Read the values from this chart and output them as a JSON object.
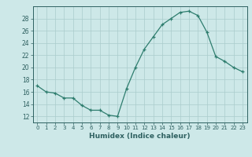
{
  "x": [
    0,
    1,
    2,
    3,
    4,
    5,
    6,
    7,
    8,
    9,
    10,
    11,
    12,
    13,
    14,
    15,
    16,
    17,
    18,
    19,
    20,
    21,
    22,
    23
  ],
  "y": [
    17,
    16,
    15.8,
    15,
    15,
    13.8,
    13,
    13,
    12.2,
    12,
    16.5,
    20,
    23,
    25,
    27,
    28,
    29,
    29.2,
    28.5,
    25.8,
    21.8,
    21,
    20,
    19.3
  ],
  "line_color": "#2e7d6e",
  "marker": "+",
  "bg_color": "#cde8e8",
  "grid_color": "#aacccc",
  "xlabel": "Humidex (Indice chaleur)",
  "xlim": [
    -0.5,
    23.5
  ],
  "ylim": [
    11,
    30
  ],
  "yticks": [
    12,
    14,
    16,
    18,
    20,
    22,
    24,
    26,
    28
  ],
  "xticks": [
    0,
    1,
    2,
    3,
    4,
    5,
    6,
    7,
    8,
    9,
    10,
    11,
    12,
    13,
    14,
    15,
    16,
    17,
    18,
    19,
    20,
    21,
    22,
    23
  ],
  "xtick_labels": [
    "0",
    "1",
    "2",
    "3",
    "4",
    "5",
    "6",
    "7",
    "8",
    "9",
    "10",
    "11",
    "12",
    "13",
    "14",
    "15",
    "16",
    "17",
    "18",
    "19",
    "20",
    "21",
    "22",
    "23"
  ],
  "font_color": "#2e6060",
  "axis_color": "#2e6060"
}
